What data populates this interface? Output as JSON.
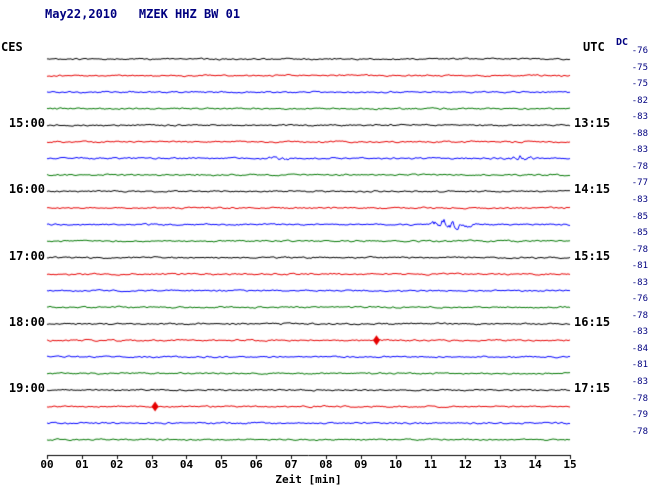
{
  "header": {
    "title": "May22,2010   MZEK HHZ BW 01"
  },
  "axes": {
    "left_timezone_label": "CES",
    "right_timezone_label": "UTC",
    "dc_label": "DC",
    "x_label": "Zeit [min]"
  },
  "chart_data": {
    "type": "line",
    "title": "May22,2010 MZEK HHZ BW 01",
    "xlabel": "Zeit [min]",
    "x_range_min": [
      0,
      15
    ],
    "x_ticks": [
      "00",
      "01",
      "02",
      "03",
      "04",
      "05",
      "06",
      "07",
      "08",
      "09",
      "10",
      "11",
      "12",
      "13",
      "14",
      "15"
    ],
    "grid": false,
    "legend": "none",
    "noise_amp": 0.9,
    "colors": {
      "black": "#000000",
      "red": "#e60000",
      "blue": "#0000ff",
      "green": "#007700"
    },
    "rows": [
      {
        "color": "black",
        "dc": "-76"
      },
      {
        "color": "red",
        "dc": "-75"
      },
      {
        "color": "blue",
        "dc": "-75"
      },
      {
        "color": "green",
        "dc": "-82"
      },
      {
        "color": "black",
        "left_label": "15:00",
        "right_label": "13:15",
        "dc": "-83"
      },
      {
        "color": "red",
        "dc": "-88"
      },
      {
        "color": "blue",
        "dc": "-83"
      },
      {
        "color": "green",
        "dc": "-78"
      },
      {
        "color": "black",
        "left_label": "16:00",
        "right_label": "14:15",
        "dc": "-77"
      },
      {
        "color": "red",
        "dc": "-83"
      },
      {
        "color": "blue",
        "dc": "-85"
      },
      {
        "color": "green",
        "dc": "-85"
      },
      {
        "color": "black",
        "left_label": "17:00",
        "right_label": "15:15",
        "dc": "-78"
      },
      {
        "color": "red",
        "dc": "-81"
      },
      {
        "color": "blue",
        "dc": "-83"
      },
      {
        "color": "green",
        "dc": "-76"
      },
      {
        "color": "black",
        "left_label": "18:00",
        "right_label": "16:15",
        "dc": "-78"
      },
      {
        "color": "red",
        "dc": "-83"
      },
      {
        "color": "blue",
        "dc": "-84"
      },
      {
        "color": "green",
        "dc": "-81"
      },
      {
        "color": "black",
        "left_label": "19:00",
        "right_label": "17:15",
        "dc": "-83"
      },
      {
        "color": "red",
        "dc": "-78"
      },
      {
        "color": "blue",
        "dc": "-79"
      },
      {
        "color": "green",
        "dc": "-78"
      }
    ],
    "events": [
      {
        "row": 6,
        "type": "burst",
        "start_min": 6.2,
        "peak_min": 6.6,
        "end_min": 7.4,
        "amp": 1.3
      },
      {
        "row": 6,
        "type": "burst",
        "start_min": 13.15,
        "peak_min": 13.5,
        "end_min": 14.05,
        "amp": 3.5
      },
      {
        "row": 10,
        "type": "burst",
        "start_min": 10.85,
        "peak_min": 11.35,
        "end_min": 12.5,
        "amp": 5.5
      },
      {
        "row": 17,
        "type": "diamond",
        "x_min": 9.45
      },
      {
        "row": 21,
        "type": "diamond",
        "x_min": 3.1
      }
    ]
  }
}
